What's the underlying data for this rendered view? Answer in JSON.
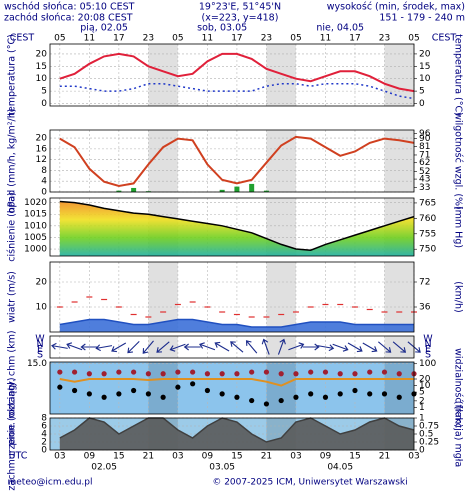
{
  "header": {
    "sunrise": "wschód słońca: 05:10 CEST",
    "sunset": "zachód słońca: 20:08 CEST",
    "coords": "19°23'E, 51°45'N",
    "grid": "(x=223, y=418)",
    "elevation_title": "wysokość (min, środek, max)",
    "elevation": "151 - 179 - 240 m"
  },
  "time_axis": {
    "top_label": "CEST",
    "bottom_label": "UTC",
    "xlim": [
      1,
      75
    ],
    "days": [
      {
        "value": 12,
        "label": "pią, 02.05"
      },
      {
        "value": 36,
        "label": "sob, 03.05"
      },
      {
        "value": 60,
        "label": "nie, 04.05"
      }
    ],
    "cest_ticks": [
      {
        "value": 3,
        "label": "05"
      },
      {
        "value": 9,
        "label": "11"
      },
      {
        "value": 15,
        "label": "17"
      },
      {
        "value": 21,
        "label": "23"
      },
      {
        "value": 27,
        "label": "05"
      },
      {
        "value": 33,
        "label": "11"
      },
      {
        "value": 39,
        "label": "17"
      },
      {
        "value": 45,
        "label": "23"
      },
      {
        "value": 51,
        "label": "05"
      },
      {
        "value": 57,
        "label": "11"
      },
      {
        "value": 63,
        "label": "17"
      },
      {
        "value": 69,
        "label": "23"
      },
      {
        "value": 75,
        "label": "05"
      }
    ],
    "utc_ticks": [
      {
        "value": 3,
        "label": "03"
      },
      {
        "value": 9,
        "label": "09"
      },
      {
        "value": 15,
        "label": "15"
      },
      {
        "value": 21,
        "label": "21"
      },
      {
        "value": 27,
        "label": "03"
      },
      {
        "value": 33,
        "label": "09"
      },
      {
        "value": 39,
        "label": "15"
      },
      {
        "value": 45,
        "label": "21"
      },
      {
        "value": 51,
        "label": "03"
      },
      {
        "value": 57,
        "label": "09"
      },
      {
        "value": 63,
        "label": "15"
      },
      {
        "value": 69,
        "label": "21"
      },
      {
        "value": 75,
        "label": "03"
      }
    ],
    "dates": [
      {
        "value": 12,
        "label": "02.05"
      },
      {
        "value": 36,
        "label": "03.05"
      },
      {
        "value": 60,
        "label": "04.05"
      }
    ]
  },
  "chart_data": [
    {
      "type": "line",
      "ylabel": "temperatura (°C)",
      "y2label": "temperatura (°C)",
      "x": [
        3,
        6,
        9,
        12,
        15,
        18,
        21,
        24,
        27,
        30,
        33,
        36,
        39,
        42,
        45,
        48,
        51,
        54,
        57,
        60,
        63,
        66,
        69,
        72,
        75
      ],
      "ylim": [
        -1,
        24
      ],
      "yticks": [
        0,
        5,
        10,
        15,
        20
      ],
      "y2lim": [
        -1,
        24
      ],
      "y2ticks": [
        0,
        5,
        10,
        15,
        20
      ],
      "grid": true,
      "series": [
        {
          "type": "line",
          "color": "#e0203a",
          "values": [
            10,
            12,
            16,
            19,
            20,
            19,
            15,
            13,
            11,
            12,
            17,
            20,
            20,
            18,
            14,
            12,
            10,
            9,
            11,
            13,
            13,
            11,
            8,
            6,
            5
          ]
        },
        {
          "type": "line",
          "color": "#2038c8",
          "dashed": true,
          "values": [
            7,
            7,
            6,
            5,
            5,
            6,
            8,
            8,
            7,
            6,
            5,
            5,
            5,
            5,
            7,
            8,
            8,
            7,
            8,
            8,
            8,
            7,
            5,
            3,
            2
          ]
        }
      ]
    },
    {
      "type": "bar",
      "ylabel": "opad (mm/h, kg/m²/h)",
      "y2label": "wilgotność wzgl. (%)",
      "x": [
        3,
        6,
        9,
        12,
        15,
        18,
        21,
        24,
        27,
        30,
        33,
        36,
        39,
        42,
        45,
        48,
        51,
        54,
        57,
        60,
        63,
        66,
        69,
        72,
        75
      ],
      "ylim": [
        0,
        23
      ],
      "yticks": [
        0,
        4,
        8,
        12,
        16,
        20
      ],
      "y2lim": [
        28,
        100
      ],
      "y2ticks": [
        33,
        43,
        52,
        62,
        71,
        81,
        90,
        96
      ],
      "grid": true,
      "series": [
        {
          "type": "bar",
          "color": "#20a030",
          "values": [
            0,
            0,
            0,
            0,
            0.5,
            1.5,
            0.3,
            0,
            0,
            0,
            0,
            0.8,
            2,
            3,
            0.5,
            0,
            0,
            0,
            0,
            0,
            0,
            0,
            0,
            0,
            0
          ]
        },
        {
          "type": "line",
          "color": "#d04020",
          "axis": "y2",
          "values": [
            90,
            80,
            55,
            40,
            35,
            38,
            60,
            80,
            90,
            88,
            60,
            42,
            38,
            42,
            62,
            82,
            92,
            90,
            80,
            70,
            75,
            85,
            90,
            88,
            85
          ]
        }
      ]
    },
    {
      "type": "area",
      "ylabel": "ciśnienie (hPa)",
      "y2label": "(mm Hg)",
      "x": [
        3,
        6,
        9,
        12,
        15,
        18,
        21,
        24,
        27,
        30,
        33,
        36,
        39,
        42,
        45,
        48,
        51,
        54,
        57,
        60,
        63,
        66,
        69,
        72,
        75
      ],
      "ylim": [
        997,
        1022
      ],
      "yticks": [
        1000,
        1005,
        1010,
        1015,
        1020
      ],
      "y2lim": [
        747.8,
        766.6
      ],
      "y2ticks": [
        750,
        755,
        760,
        765
      ],
      "grid": true,
      "series": [
        {
          "type": "area",
          "color": "#000000",
          "fill_gradient": [
            "#f08c1e",
            "#f0e020",
            "#70d020",
            "#20b0a0"
          ],
          "values": [
            1020.5,
            1020,
            1019,
            1017.5,
            1016.5,
            1015.5,
            1015,
            1014,
            1013,
            1012,
            1011,
            1010,
            1008.5,
            1007,
            1004.5,
            1002,
            1000,
            999.5,
            1002,
            1004,
            1006,
            1008,
            1010,
            1012,
            1014
          ]
        }
      ]
    },
    {
      "type": "area",
      "ylabel": "wiatr (m/s)",
      "y2label": "(km/h)",
      "x": [
        3,
        6,
        9,
        12,
        15,
        18,
        21,
        24,
        27,
        30,
        33,
        36,
        39,
        42,
        45,
        48,
        51,
        54,
        57,
        60,
        63,
        66,
        69,
        72,
        75
      ],
      "ylim": [
        0,
        28
      ],
      "yticks": [
        10,
        20
      ],
      "y2lim": [
        0,
        100.8
      ],
      "y2ticks": [
        36,
        72
      ],
      "grid": true,
      "series": [
        {
          "type": "area",
          "color": "#2050c0",
          "fill": "#3c70d8",
          "values": [
            3,
            4,
            5,
            5,
            4,
            3,
            3,
            4,
            5,
            5,
            4,
            3,
            3,
            2,
            2,
            2,
            3,
            4,
            4,
            4,
            3,
            3,
            3,
            3,
            3
          ]
        },
        {
          "type": "dash",
          "color": "#e03030",
          "values": [
            10,
            12,
            14,
            13,
            10,
            7,
            6,
            8,
            11,
            12,
            10,
            8,
            7,
            6,
            6,
            7,
            8,
            10,
            11,
            11,
            10,
            9,
            8,
            8,
            8
          ]
        }
      ]
    },
    {
      "type": "arrows",
      "compass": [
        "W",
        "N",
        "E",
        "S"
      ],
      "x": [
        3,
        6,
        9,
        12,
        15,
        18,
        21,
        24,
        27,
        30,
        33,
        36,
        39,
        42,
        45,
        48,
        51,
        54,
        57,
        60,
        63,
        66,
        69,
        72,
        75
      ],
      "series": [
        {
          "type": "arrows",
          "color": "#1c2c8c",
          "values": [
            100,
            110,
            90,
            80,
            60,
            45,
            40,
            50,
            70,
            90,
            110,
            120,
            130,
            140,
            160,
            200,
            250,
            270,
            280,
            290,
            300,
            300,
            310,
            310,
            310
          ]
        }
      ]
    },
    {
      "type": "scatter",
      "ylabel": "pion. rozciągł. chm (km)",
      "y2label": "widzialność (km)",
      "x": [
        3,
        6,
        9,
        12,
        15,
        18,
        21,
        24,
        27,
        30,
        33,
        36,
        39,
        42,
        45,
        48,
        51,
        54,
        57,
        60,
        63,
        66,
        69,
        72,
        75
      ],
      "ylim": [
        0,
        15.5
      ],
      "yticks": [
        {
          "value": 15,
          "label": "15.0"
        }
      ],
      "y2log": true,
      "y2lim": [
        0.5,
        120
      ],
      "y2ticks": [
        1,
        2,
        5,
        10,
        20,
        100
      ],
      "grid": true,
      "series": [
        {
          "type": "dots",
          "color": "#a02030",
          "values": [
            12.5,
            12.5,
            12,
            12,
            12.5,
            12.5,
            12,
            12,
            12.5,
            12.5,
            12,
            12,
            12,
            12.5,
            12.5,
            12,
            12,
            12.5,
            12.5,
            12,
            12,
            12.5,
            12.5,
            12,
            12
          ]
        },
        {
          "type": "dots",
          "color": "#000000",
          "values": [
            8,
            7,
            6,
            5,
            6,
            7,
            6,
            5,
            8,
            9,
            7,
            6,
            5,
            4,
            3,
            4,
            5,
            6,
            5,
            6,
            7,
            6,
            6,
            5,
            6
          ]
        },
        {
          "type": "line",
          "color": "#e09020",
          "axis": "y2",
          "values": [
            20,
            15,
            20,
            20,
            20,
            20,
            18,
            20,
            20,
            20,
            20,
            20,
            20,
            20,
            15,
            10,
            20,
            20,
            20,
            20,
            20,
            20,
            20,
            20,
            20
          ]
        }
      ]
    },
    {
      "type": "area",
      "ylabel": "zachmurzenie (oktanty)",
      "y2label": "(frakcja) mgła",
      "x": [
        3,
        6,
        9,
        12,
        15,
        18,
        21,
        24,
        27,
        30,
        33,
        36,
        39,
        42,
        45,
        48,
        51,
        54,
        57,
        60,
        63,
        66,
        69,
        72,
        75
      ],
      "ylim": [
        0,
        8
      ],
      "yticks": [
        0,
        2,
        4,
        6,
        8
      ],
      "y2lim": [
        0,
        1
      ],
      "y2ticks": [
        0,
        0.25,
        0.5,
        0.75,
        1
      ],
      "grid": true,
      "series": [
        {
          "type": "area",
          "color": "#404040",
          "fill": "#5a5a5a",
          "values": [
            3,
            5,
            8,
            7,
            4,
            6,
            8,
            8,
            5,
            3,
            6,
            8,
            7,
            4,
            2,
            3,
            7,
            8,
            6,
            4,
            5,
            7,
            8,
            6,
            5
          ]
        }
      ]
    }
  ],
  "footer": {
    "left": "meteo@icm.edu.pl",
    "right": "© 2007-2025 ICM, Uniwersytet Warszawski"
  }
}
